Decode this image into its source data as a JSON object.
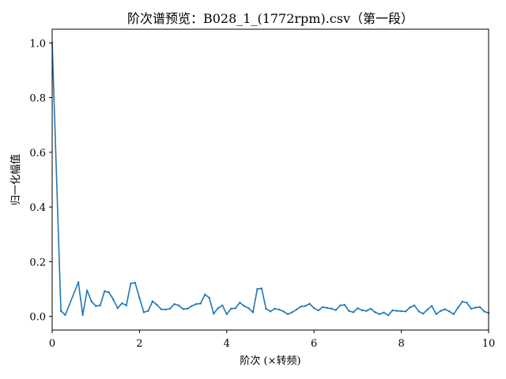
{
  "chart_data": {
    "type": "line",
    "title": "阶次谱预览：B028_1_(1772rpm).csv（第一段）",
    "xlabel": "阶次 (×转频)",
    "ylabel": "归一化幅值",
    "xlim": [
      0,
      10
    ],
    "ylim": [
      -0.05,
      1.05
    ],
    "xticks": [
      0,
      2,
      4,
      6,
      8,
      10
    ],
    "xtick_labels": [
      "0",
      "2",
      "4",
      "6",
      "8",
      "10"
    ],
    "yticks": [
      0.0,
      0.2,
      0.4,
      0.6,
      0.8,
      1.0
    ],
    "ytick_labels": [
      "0.0",
      "0.2",
      "0.4",
      "0.6",
      "0.8",
      "1.0"
    ],
    "grid": false,
    "colors": {
      "series": "#1f77b4"
    },
    "series": [
      {
        "x": [
          0,
          0.2,
          0.3,
          0.6,
          0.7,
          0.8,
          0.9,
          1.0,
          1.1,
          1.2,
          1.3,
          1.4,
          1.5,
          1.6,
          1.7,
          1.8,
          1.9,
          2.0,
          2.1,
          2.2,
          2.3,
          2.4,
          2.5,
          2.6,
          2.7,
          2.8,
          2.9,
          3.0,
          3.1,
          3.2,
          3.3,
          3.4,
          3.5,
          3.6,
          3.7,
          3.8,
          3.9,
          4.0,
          4.1,
          4.2,
          4.3,
          4.4,
          4.5,
          4.6,
          4.7,
          4.8,
          4.9,
          5.0,
          5.1,
          5.2,
          5.3,
          5.4,
          5.5,
          5.6,
          5.7,
          5.8,
          5.9,
          6.0,
          6.1,
          6.2,
          6.3,
          6.4,
          6.5,
          6.6,
          6.7,
          6.8,
          6.9,
          7.0,
          7.1,
          7.2,
          7.3,
          7.4,
          7.5,
          7.6,
          7.7,
          7.8,
          7.9,
          8.0,
          8.1,
          8.2,
          8.3,
          8.4,
          8.5,
          8.6,
          8.7,
          8.8,
          8.9,
          9.0,
          9.1,
          9.2,
          9.3,
          9.4,
          9.5,
          9.6,
          9.7,
          9.8,
          9.9,
          10.0
        ],
        "values": [
          1.0,
          0.02,
          0.005,
          0.125,
          0.005,
          0.095,
          0.055,
          0.038,
          0.04,
          0.092,
          0.088,
          0.062,
          0.03,
          0.048,
          0.04,
          0.12,
          0.123,
          0.068,
          0.015,
          0.02,
          0.055,
          0.042,
          0.026,
          0.025,
          0.028,
          0.045,
          0.04,
          0.027,
          0.028,
          0.038,
          0.045,
          0.047,
          0.08,
          0.068,
          0.01,
          0.03,
          0.04,
          0.008,
          0.028,
          0.03,
          0.05,
          0.038,
          0.03,
          0.015,
          0.1,
          0.102,
          0.028,
          0.018,
          0.028,
          0.025,
          0.018,
          0.008,
          0.015,
          0.025,
          0.036,
          0.038,
          0.046,
          0.03,
          0.022,
          0.034,
          0.031,
          0.028,
          0.023,
          0.04,
          0.042,
          0.02,
          0.015,
          0.03,
          0.022,
          0.02,
          0.028,
          0.015,
          0.008,
          0.014,
          0.004,
          0.022,
          0.02,
          0.019,
          0.018,
          0.033,
          0.04,
          0.018,
          0.01,
          0.025,
          0.038,
          0.008,
          0.02,
          0.026,
          0.018,
          0.008,
          0.032,
          0.054,
          0.05,
          0.028,
          0.032,
          0.034,
          0.018,
          0.012
        ]
      }
    ]
  }
}
